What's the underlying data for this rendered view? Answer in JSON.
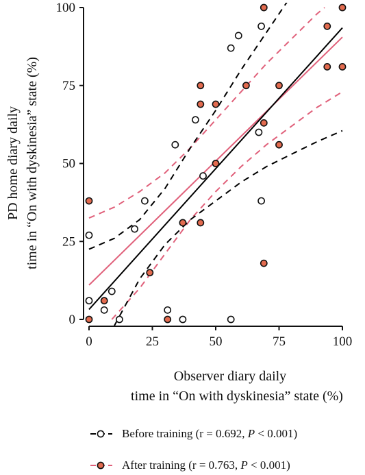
{
  "chart_data": {
    "type": "scatter",
    "xlabel_lines": [
      "Observer diary daily",
      "time in “On with dyskinesia” state (%)"
    ],
    "ylabel_lines": [
      "PD home diary daily",
      "time in “On with dyskinesia” state (%)"
    ],
    "xlim": [
      0,
      100
    ],
    "ylim": [
      0,
      100
    ],
    "xticks": [
      0,
      25,
      50,
      75,
      100
    ],
    "yticks": [
      0,
      25,
      50,
      75,
      100
    ],
    "grid": false,
    "legend_position": "bottom",
    "series": [
      {
        "name": "Before training",
        "legend_text": "Before training (r = 0.692, ",
        "legend_p": "P",
        "legend_tail": " < 0.001)",
        "color": "#000000",
        "marker_fill": "#ffffff",
        "points": [
          [
            0,
            27
          ],
          [
            0,
            6
          ],
          [
            6,
            3
          ],
          [
            9,
            9
          ],
          [
            12,
            0
          ],
          [
            18,
            29
          ],
          [
            22,
            38
          ],
          [
            31,
            3
          ],
          [
            34,
            56
          ],
          [
            37,
            0
          ],
          [
            42,
            64
          ],
          [
            45,
            46
          ],
          [
            56,
            0
          ],
          [
            56,
            87
          ],
          [
            59,
            91
          ],
          [
            67,
            60
          ],
          [
            68,
            38
          ],
          [
            68,
            94
          ]
        ],
        "fit_line": [
          [
            0,
            3.2
          ],
          [
            100,
            93.5
          ]
        ],
        "ci_upper": [
          [
            0,
            22.5
          ],
          [
            10,
            26
          ],
          [
            20,
            32
          ],
          [
            30,
            42
          ],
          [
            40,
            55
          ],
          [
            50,
            67
          ],
          [
            60,
            80
          ],
          [
            70,
            92
          ],
          [
            80,
            104
          ]
        ],
        "ci_lower": [
          [
            10,
            -2
          ],
          [
            20,
            13
          ],
          [
            30,
            24
          ],
          [
            40,
            32
          ],
          [
            50,
            38
          ],
          [
            60,
            44
          ],
          [
            70,
            49
          ],
          [
            80,
            53
          ],
          [
            90,
            57
          ],
          [
            100,
            60.5
          ]
        ]
      },
      {
        "name": "After training",
        "legend_text": "After training (r = 0.763, ",
        "legend_p": "P",
        "legend_tail": " < 0.001)",
        "color": "#e0607a",
        "marker_fill": "#e36b4f",
        "points": [
          [
            0,
            38
          ],
          [
            0,
            0
          ],
          [
            6,
            6
          ],
          [
            24,
            15
          ],
          [
            31,
            0
          ],
          [
            37,
            31
          ],
          [
            44,
            75
          ],
          [
            44,
            69
          ],
          [
            44,
            31
          ],
          [
            50,
            69
          ],
          [
            50,
            50
          ],
          [
            62,
            75
          ],
          [
            69,
            100
          ],
          [
            69,
            63
          ],
          [
            69,
            18
          ],
          [
            75,
            75
          ],
          [
            75,
            56
          ],
          [
            94,
            81
          ],
          [
            94,
            94
          ],
          [
            100,
            100
          ],
          [
            100,
            81
          ]
        ],
        "fit_line": [
          [
            0,
            11
          ],
          [
            100,
            90.5
          ]
        ],
        "ci_upper": [
          [
            0,
            32.5
          ],
          [
            10,
            36
          ],
          [
            20,
            41
          ],
          [
            30,
            47
          ],
          [
            40,
            55
          ],
          [
            50,
            64
          ],
          [
            60,
            73
          ],
          [
            70,
            82
          ],
          [
            80,
            90
          ],
          [
            90,
            98
          ],
          [
            93,
            100
          ]
        ],
        "ci_lower": [
          [
            9,
            0
          ],
          [
            20,
            10
          ],
          [
            30,
            21
          ],
          [
            40,
            32
          ],
          [
            50,
            41
          ],
          [
            60,
            49
          ],
          [
            70,
            56
          ],
          [
            80,
            62
          ],
          [
            90,
            68
          ],
          [
            100,
            73
          ]
        ]
      }
    ]
  }
}
